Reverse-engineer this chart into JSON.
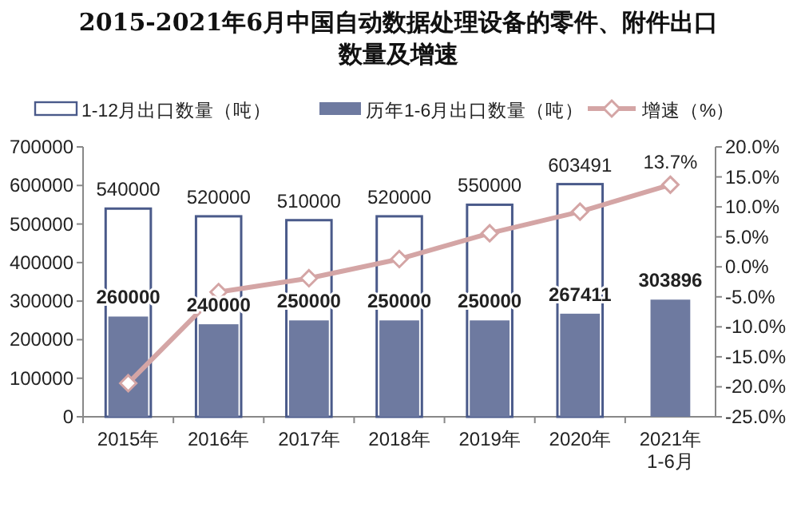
{
  "chart_data": {
    "type": "bar",
    "title": "2015-2021年6月中国自动数据处理设备的零件、附件出口数量及增速",
    "categories": [
      "2015年",
      "2016年",
      "2017年",
      "2018年",
      "2019年",
      "2020年",
      "2021年1-6月"
    ],
    "series": [
      {
        "name": "1-12月出口数量（吨）",
        "color": "#ffffff",
        "values": [
          540000,
          520000,
          510000,
          520000,
          550000,
          603491,
          null
        ],
        "value_labels": [
          "540000",
          "520000",
          "510000",
          "520000",
          "550000",
          "603491",
          null
        ]
      },
      {
        "name": "历年1-6月出口数量（吨）",
        "color": "#6e7aa0",
        "values": [
          260000,
          240000,
          250000,
          250000,
          250000,
          267411,
          303896
        ],
        "value_labels": [
          "260000",
          "240000",
          "250000",
          "250000",
          "250000",
          "267411",
          "303896"
        ]
      },
      {
        "name": "增速（%）",
        "type": "line",
        "axis": "y2",
        "color": "#d4a5a5",
        "marker": "diamond",
        "values": [
          -19.4,
          -4.2,
          -1.9,
          1.3,
          5.6,
          9.2,
          13.7
        ],
        "value_labels": [
          null,
          null,
          null,
          null,
          null,
          null,
          "13.7%"
        ]
      }
    ],
    "ylim": [
      0,
      700000
    ],
    "yticks": [
      0,
      100000,
      200000,
      300000,
      400000,
      500000,
      600000,
      700000
    ],
    "y2lim": [
      -25,
      20
    ],
    "y2ticks": [
      {
        "value": -25,
        "label": "-25.0%"
      },
      {
        "value": -20,
        "label": "-20.0%"
      },
      {
        "value": -15,
        "label": "-15.0%"
      },
      {
        "value": -10,
        "label": "-10.0%"
      },
      {
        "value": -5,
        "label": "-5.0%"
      },
      {
        "value": 0,
        "label": "0.0%"
      },
      {
        "value": 5,
        "label": "5.0%"
      },
      {
        "value": 10,
        "label": "10.0%"
      },
      {
        "value": 15,
        "label": "15.0%"
      },
      {
        "value": 20,
        "label": "20.0%"
      }
    ],
    "legend": "top",
    "grid": false
  }
}
